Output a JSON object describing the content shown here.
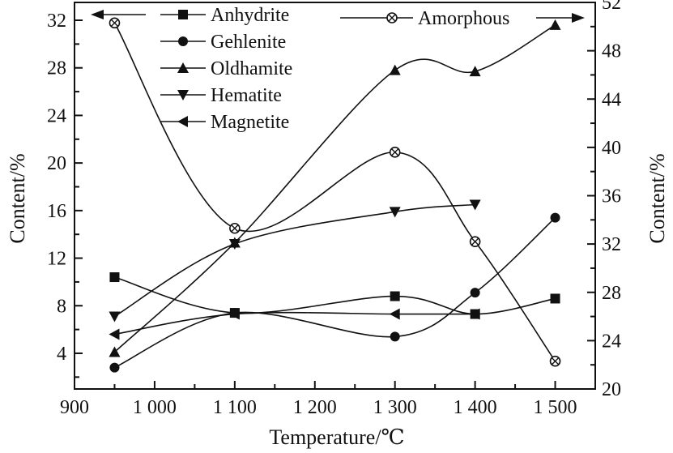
{
  "chart_data": {
    "type": "scatter",
    "xlabel": "Temperature/℃",
    "ylabel_left": "Content/%",
    "ylabel_right": "Content/%",
    "xlim": [
      900,
      1550
    ],
    "ylim_left": [
      1,
      33.5
    ],
    "ylim_right": [
      20,
      52
    ],
    "xticks": [
      {
        "value": 900,
        "label": "900"
      },
      {
        "value": 1000,
        "label": "1 000"
      },
      {
        "value": 1100,
        "label": "1 100"
      },
      {
        "value": 1200,
        "label": "1 200"
      },
      {
        "value": 1300,
        "label": "1 300"
      },
      {
        "value": 1400,
        "label": "1 400"
      },
      {
        "value": 1500,
        "label": "1 500"
      }
    ],
    "yticks_left": [
      4,
      8,
      12,
      16,
      20,
      24,
      28,
      32
    ],
    "yticks_right": [
      20,
      24,
      28,
      32,
      36,
      40,
      44,
      48,
      52
    ],
    "grid": false,
    "legend_placement": "top",
    "series": [
      {
        "name": "Anhydrite",
        "marker": "square",
        "axis": "left",
        "x": [
          950,
          1100,
          1300,
          1400,
          1500
        ],
        "y": [
          10.4,
          7.4,
          8.8,
          7.3,
          8.6
        ]
      },
      {
        "name": "Gehlenite",
        "marker": "circle",
        "axis": "left",
        "x": [
          950,
          1100,
          1300,
          1400,
          1500
        ],
        "y": [
          2.8,
          7.4,
          5.4,
          9.1,
          15.4
        ]
      },
      {
        "name": "Oldhamite",
        "marker": "triangle-up",
        "axis": "left",
        "x": [
          950,
          1100,
          1300,
          1400,
          1500
        ],
        "y": [
          4.1,
          13.3,
          27.8,
          27.7,
          31.6
        ]
      },
      {
        "name": "Hematite",
        "marker": "triangle-down",
        "axis": "left",
        "x": [
          950,
          1100,
          1300,
          1400
        ],
        "y": [
          7.1,
          13.2,
          15.9,
          16.5
        ]
      },
      {
        "name": "Magnetite",
        "marker": "triangle-left",
        "axis": "left",
        "x": [
          950,
          1100,
          1300,
          1400
        ],
        "y": [
          5.6,
          7.3,
          7.3,
          7.3
        ]
      },
      {
        "name": "Amorphous",
        "marker": "circle-x",
        "axis": "right",
        "x": [
          950,
          1100,
          1300,
          1400,
          1500
        ],
        "y": [
          50.3,
          33.3,
          39.6,
          32.2,
          22.3
        ]
      }
    ]
  }
}
